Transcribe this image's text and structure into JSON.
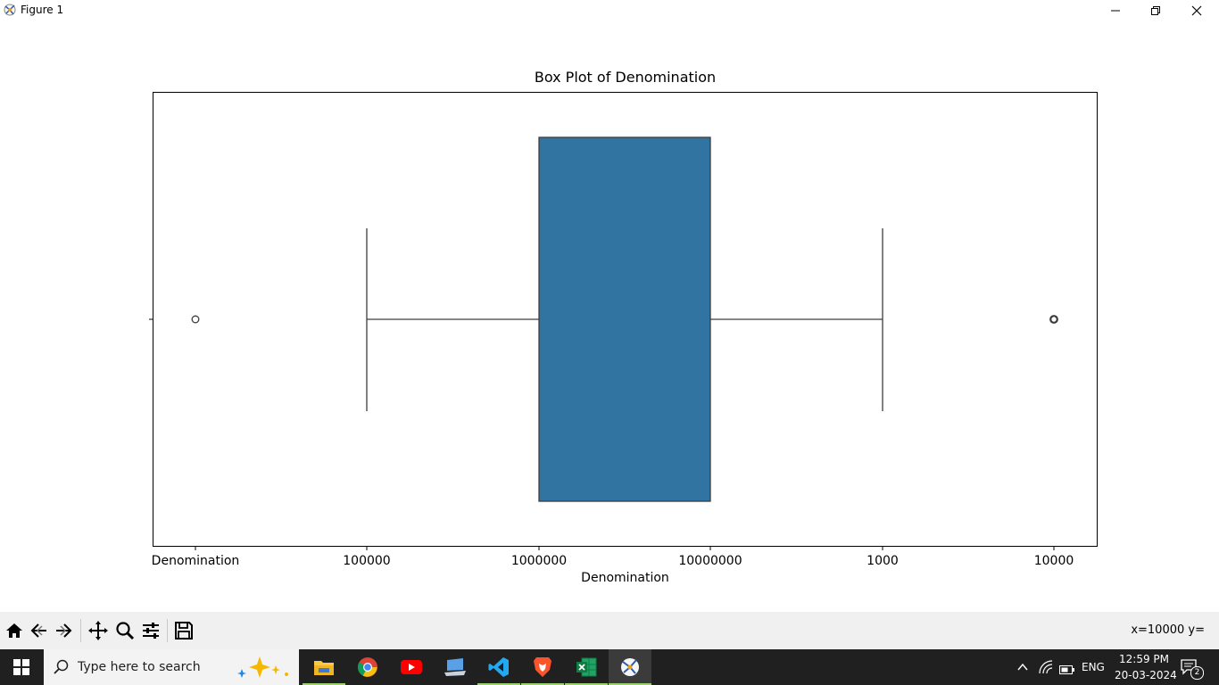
{
  "window": {
    "title": "Figure 1",
    "icons": [
      "app-icon",
      "minimize-icon",
      "maximize-icon",
      "close-icon"
    ]
  },
  "plot": {
    "title": "Box Plot of Denomination",
    "xlabel": "Denomination",
    "box_color": "#3274a1",
    "ticks": [
      "Denomination",
      "100000",
      "1000000",
      "10000000",
      "1000",
      "10000"
    ]
  },
  "chart_data": {
    "type": "box",
    "title": "Box Plot of Denomination",
    "xlabel": "Denomination",
    "ylabel": "",
    "orientation": "horizontal",
    "categorical_x_ticks": [
      "Denomination",
      "100000",
      "1000000",
      "10000000",
      "1000",
      "10000"
    ],
    "whisker_low": "100000",
    "q1": "1000000",
    "q3": "10000000",
    "whisker_high": "1000",
    "outliers": [
      "Denomination",
      "10000"
    ],
    "grid": false
  },
  "toolbar": {
    "buttons": [
      "home-icon",
      "back-icon",
      "forward-icon",
      "pan-icon",
      "zoom-icon",
      "configure-icon",
      "save-icon"
    ],
    "coords": "x=10000 y="
  },
  "taskbar": {
    "search_placeholder": "Type here to search",
    "apps": [
      "file-explorer",
      "chrome",
      "youtube",
      "remote-desktop",
      "vscode",
      "brave",
      "excel",
      "python-figure"
    ],
    "language": "ENG",
    "time": "12:59 PM",
    "date": "20-03-2024",
    "notification_count": "2"
  }
}
